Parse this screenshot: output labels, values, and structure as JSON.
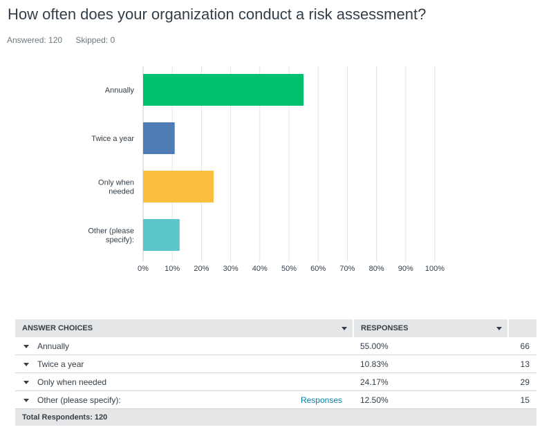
{
  "question": {
    "title": "How often does your organization conduct a risk assessment?",
    "answered_label": "Answered: 120",
    "skipped_label": "Skipped: 0"
  },
  "colors": {
    "bar_1": "#00bf6f",
    "bar_2": "#507cb6",
    "bar_3": "#f9be3d",
    "bar_4": "#5cc6cb",
    "grid": "#e0e2e4",
    "header_bg": "#e5e6e7",
    "link": "#007faa"
  },
  "chart_data": {
    "type": "bar",
    "orientation": "horizontal",
    "categories": [
      [
        "Annually"
      ],
      [
        "Twice a year"
      ],
      [
        "Only when",
        "needed"
      ],
      [
        "Other (please",
        "specify):"
      ]
    ],
    "values": [
      55.0,
      10.83,
      24.17,
      12.5
    ],
    "x_ticks": [
      "0%",
      "10%",
      "20%",
      "30%",
      "40%",
      "50%",
      "60%",
      "70%",
      "80%",
      "90%",
      "100%"
    ],
    "xlim": [
      0,
      100
    ],
    "grid": true
  },
  "table": {
    "headers": {
      "choices": "ANSWER CHOICES",
      "responses": "RESPONSES"
    },
    "rows": [
      {
        "choice": "Annually",
        "percent": "55.00%",
        "count": "66",
        "link": ""
      },
      {
        "choice": "Twice a year",
        "percent": "10.83%",
        "count": "13",
        "link": ""
      },
      {
        "choice": "Only when needed",
        "percent": "24.17%",
        "count": "29",
        "link": ""
      },
      {
        "choice": "Other (please specify):",
        "percent": "12.50%",
        "count": "15",
        "link": "Responses"
      }
    ],
    "total_label": "Total Respondents: 120"
  }
}
